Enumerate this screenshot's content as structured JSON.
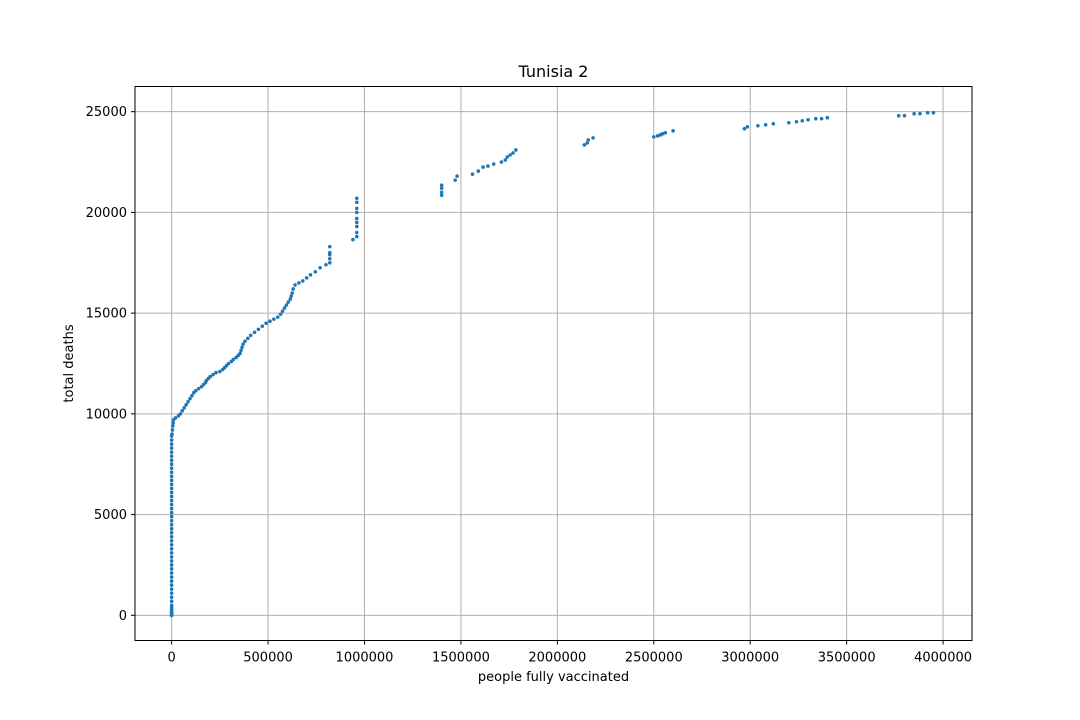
{
  "chart_data": {
    "type": "scatter",
    "title": "Tunisia 2",
    "xlabel": "people fully vaccinated",
    "ylabel": "total deaths",
    "xlim": [
      -190000,
      4150000
    ],
    "ylim": [
      -1250,
      26250
    ],
    "xticks": [
      0,
      500000,
      1000000,
      1500000,
      2000000,
      2500000,
      3000000,
      3500000,
      4000000
    ],
    "xtick_labels": [
      "0",
      "500000",
      "1000000",
      "1500000",
      "2000000",
      "2500000",
      "3000000",
      "3500000",
      "4000000"
    ],
    "yticks": [
      0,
      5000,
      10000,
      15000,
      20000,
      25000
    ],
    "ytick_labels": [
      "0",
      "5000",
      "10000",
      "15000",
      "20000",
      "25000"
    ],
    "grid": true,
    "color": "#1f77b4",
    "series": [
      {
        "points": [
          [
            0,
            0
          ],
          [
            0,
            50
          ],
          [
            0,
            100
          ],
          [
            0,
            150
          ],
          [
            0,
            200
          ],
          [
            0,
            300
          ],
          [
            0,
            400
          ],
          [
            0,
            500
          ],
          [
            0,
            700
          ],
          [
            0,
            900
          ],
          [
            0,
            1100
          ],
          [
            0,
            1300
          ],
          [
            0,
            1500
          ],
          [
            0,
            1700
          ],
          [
            0,
            1900
          ],
          [
            0,
            2100
          ],
          [
            0,
            2300
          ],
          [
            0,
            2500
          ],
          [
            0,
            2700
          ],
          [
            0,
            2900
          ],
          [
            0,
            3100
          ],
          [
            0,
            3300
          ],
          [
            0,
            3500
          ],
          [
            0,
            3700
          ],
          [
            0,
            3900
          ],
          [
            0,
            4100
          ],
          [
            0,
            4300
          ],
          [
            0,
            4500
          ],
          [
            0,
            4700
          ],
          [
            0,
            4900
          ],
          [
            0,
            5100
          ],
          [
            0,
            5300
          ],
          [
            0,
            5500
          ],
          [
            0,
            5700
          ],
          [
            0,
            5900
          ],
          [
            0,
            6100
          ],
          [
            0,
            6300
          ],
          [
            0,
            6500
          ],
          [
            0,
            6700
          ],
          [
            0,
            6900
          ],
          [
            0,
            7100
          ],
          [
            0,
            7300
          ],
          [
            0,
            7500
          ],
          [
            0,
            7700
          ],
          [
            0,
            7900
          ],
          [
            0,
            8100
          ],
          [
            0,
            8300
          ],
          [
            0,
            8500
          ],
          [
            0,
            8700
          ],
          [
            0,
            8900
          ],
          [
            2000,
            9000
          ],
          [
            4000,
            9200
          ],
          [
            6000,
            9400
          ],
          [
            8000,
            9550
          ],
          [
            10000,
            9700
          ],
          [
            20000,
            9800
          ],
          [
            35000,
            9900
          ],
          [
            45000,
            10000
          ],
          [
            55000,
            10150
          ],
          [
            65000,
            10300
          ],
          [
            75000,
            10450
          ],
          [
            85000,
            10600
          ],
          [
            95000,
            10750
          ],
          [
            105000,
            10900
          ],
          [
            115000,
            11050
          ],
          [
            125000,
            11150
          ],
          [
            140000,
            11250
          ],
          [
            155000,
            11350
          ],
          [
            165000,
            11450
          ],
          [
            175000,
            11550
          ],
          [
            180000,
            11650
          ],
          [
            190000,
            11750
          ],
          [
            200000,
            11850
          ],
          [
            215000,
            11950
          ],
          [
            230000,
            12050
          ],
          [
            250000,
            12100
          ],
          [
            265000,
            12200
          ],
          [
            275000,
            12300
          ],
          [
            285000,
            12400
          ],
          [
            295000,
            12500
          ],
          [
            310000,
            12600
          ],
          [
            320000,
            12700
          ],
          [
            335000,
            12800
          ],
          [
            345000,
            12900
          ],
          [
            355000,
            13000
          ],
          [
            360000,
            13150
          ],
          [
            365000,
            13300
          ],
          [
            370000,
            13450
          ],
          [
            380000,
            13600
          ],
          [
            395000,
            13750
          ],
          [
            410000,
            13900
          ],
          [
            430000,
            14050
          ],
          [
            450000,
            14200
          ],
          [
            470000,
            14350
          ],
          [
            490000,
            14500
          ],
          [
            510000,
            14600
          ],
          [
            530000,
            14700
          ],
          [
            550000,
            14800
          ],
          [
            565000,
            14950
          ],
          [
            575000,
            15100
          ],
          [
            585000,
            15250
          ],
          [
            595000,
            15400
          ],
          [
            605000,
            15550
          ],
          [
            615000,
            15700
          ],
          [
            620000,
            15850
          ],
          [
            625000,
            16000
          ],
          [
            630000,
            16200
          ],
          [
            640000,
            16400
          ],
          [
            660000,
            16500
          ],
          [
            680000,
            16600
          ],
          [
            700000,
            16750
          ],
          [
            720000,
            16900
          ],
          [
            745000,
            17050
          ],
          [
            770000,
            17250
          ],
          [
            800000,
            17400
          ],
          [
            820000,
            17500
          ],
          [
            820000,
            17700
          ],
          [
            820000,
            17900
          ],
          [
            820000,
            18000
          ],
          [
            820000,
            18300
          ],
          [
            940000,
            18650
          ],
          [
            960000,
            18800
          ],
          [
            960000,
            19000
          ],
          [
            960000,
            19300
          ],
          [
            960000,
            19500
          ],
          [
            960000,
            19700
          ],
          [
            960000,
            20000
          ],
          [
            960000,
            20200
          ],
          [
            960000,
            20500
          ],
          [
            960000,
            20700
          ],
          [
            1400000,
            20850
          ],
          [
            1400000,
            21000
          ],
          [
            1400000,
            21200
          ],
          [
            1400000,
            21350
          ],
          [
            1470000,
            21600
          ],
          [
            1480000,
            21800
          ],
          [
            1560000,
            21900
          ],
          [
            1590000,
            22050
          ],
          [
            1615000,
            22250
          ],
          [
            1640000,
            22300
          ],
          [
            1670000,
            22400
          ],
          [
            1710000,
            22500
          ],
          [
            1730000,
            22600
          ],
          [
            1740000,
            22750
          ],
          [
            1755000,
            22850
          ],
          [
            1770000,
            22950
          ],
          [
            1785000,
            23100
          ],
          [
            2140000,
            23350
          ],
          [
            2155000,
            23450
          ],
          [
            2160000,
            23600
          ],
          [
            2185000,
            23700
          ],
          [
            2500000,
            23750
          ],
          [
            2520000,
            23800
          ],
          [
            2535000,
            23850
          ],
          [
            2545000,
            23900
          ],
          [
            2560000,
            23950
          ],
          [
            2600000,
            24050
          ],
          [
            2970000,
            24150
          ],
          [
            2985000,
            24250
          ],
          [
            3040000,
            24300
          ],
          [
            3080000,
            24350
          ],
          [
            3120000,
            24400
          ],
          [
            3200000,
            24450
          ],
          [
            3240000,
            24500
          ],
          [
            3270000,
            24550
          ],
          [
            3300000,
            24600
          ],
          [
            3340000,
            24650
          ],
          [
            3370000,
            24650
          ],
          [
            3400000,
            24700
          ],
          [
            3770000,
            24800
          ],
          [
            3800000,
            24800
          ],
          [
            3850000,
            24900
          ],
          [
            3880000,
            24900
          ],
          [
            3920000,
            24950
          ],
          [
            3950000,
            24950
          ]
        ]
      }
    ]
  }
}
